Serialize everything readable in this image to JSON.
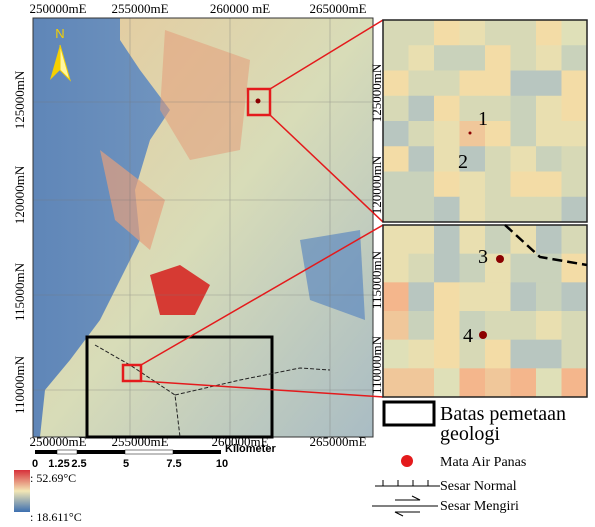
{
  "map": {
    "north": "N",
    "top_labels": [
      "250000mE",
      "255000mE",
      "260000 mE",
      "265000mE"
    ],
    "bottom_labels": [
      "250000mE",
      "255000mE",
      "260000mE",
      "265000mE"
    ],
    "left_labels": [
      "125000mN",
      "120000mN",
      "115000mN",
      "110000mN"
    ]
  },
  "insets": [
    {
      "labels": [
        "125000mN",
        "120000mN"
      ],
      "points": [
        "1",
        "2"
      ]
    },
    {
      "labels": [
        "115000mN",
        "110000mN"
      ],
      "points": [
        "3",
        "4"
      ]
    }
  ],
  "scale_bar": {
    "ticks": [
      "0",
      "1.25",
      "2.5",
      "5",
      "7.5",
      "10"
    ],
    "unit": "Kilometer"
  },
  "legend": {
    "max": ": 52.69°C",
    "min": ": 18.611°C",
    "boundary": [
      "Batas pemetaan",
      "geologi"
    ],
    "hot_spring": "Mata Air Panas",
    "normal_fault": "Sesar Normal",
    "strike_slip_fault": "Sesar Mengiri"
  }
}
